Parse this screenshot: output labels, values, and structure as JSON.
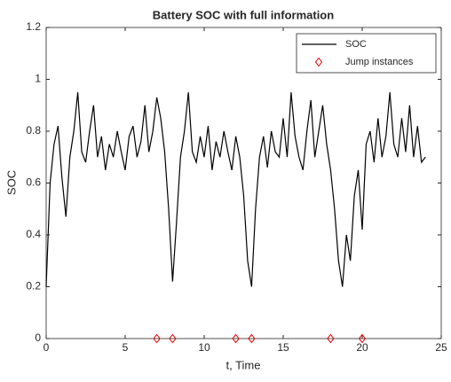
{
  "chart_data": {
    "type": "line",
    "title": "Battery SOC with full information",
    "xlabel": "t, Time",
    "ylabel": "SOC",
    "xlim": [
      0,
      25
    ],
    "xticks": [
      0,
      5,
      10,
      15,
      20,
      25
    ],
    "ylim": [
      0,
      1.2
    ],
    "yticks": [
      0,
      0.2,
      0.4,
      0.6,
      0.8,
      1,
      1.2
    ],
    "grid": false,
    "legend": "top-right",
    "series": [
      {
        "name": "SOC",
        "color": "#000000",
        "marker": "none",
        "x": [
          0,
          0.25,
          0.5,
          0.75,
          1,
          1.25,
          1.5,
          1.75,
          2,
          2.25,
          2.5,
          2.75,
          3,
          3.25,
          3.5,
          3.75,
          4,
          4.25,
          4.5,
          4.75,
          5,
          5.25,
          5.5,
          5.75,
          6,
          6.25,
          6.5,
          6.75,
          7,
          7.25,
          7.5,
          7.75,
          8,
          8.25,
          8.5,
          8.75,
          9,
          9.25,
          9.5,
          9.75,
          10,
          10.25,
          10.5,
          10.75,
          11,
          11.25,
          11.5,
          11.75,
          12,
          12.25,
          12.5,
          12.75,
          13,
          13.25,
          13.5,
          13.75,
          14,
          14.25,
          14.5,
          14.75,
          15,
          15.25,
          15.5,
          15.75,
          16,
          16.25,
          16.5,
          16.75,
          17,
          17.25,
          17.5,
          17.75,
          18,
          18.25,
          18.5,
          18.75,
          19,
          19.25,
          19.5,
          19.75,
          20,
          20.25,
          20.5,
          20.75,
          21,
          21.25,
          21.5,
          21.75,
          22,
          22.25,
          22.5,
          22.75,
          23,
          23.25,
          23.5,
          23.75,
          24
        ],
        "values": [
          0.2,
          0.6,
          0.75,
          0.82,
          0.62,
          0.47,
          0.7,
          0.8,
          0.95,
          0.72,
          0.68,
          0.8,
          0.9,
          0.7,
          0.78,
          0.65,
          0.75,
          0.7,
          0.8,
          0.72,
          0.65,
          0.78,
          0.82,
          0.7,
          0.76,
          0.9,
          0.72,
          0.8,
          0.93,
          0.85,
          0.72,
          0.5,
          0.22,
          0.45,
          0.7,
          0.8,
          0.95,
          0.72,
          0.68,
          0.78,
          0.7,
          0.82,
          0.65,
          0.76,
          0.7,
          0.8,
          0.72,
          0.65,
          0.78,
          0.7,
          0.55,
          0.3,
          0.2,
          0.5,
          0.7,
          0.78,
          0.66,
          0.8,
          0.72,
          0.7,
          0.85,
          0.7,
          0.95,
          0.78,
          0.7,
          0.65,
          0.8,
          0.92,
          0.7,
          0.8,
          0.9,
          0.75,
          0.65,
          0.5,
          0.3,
          0.2,
          0.4,
          0.3,
          0.55,
          0.65,
          0.42,
          0.75,
          0.8,
          0.68,
          0.85,
          0.7,
          0.78,
          0.95,
          0.75,
          0.7,
          0.85,
          0.72,
          0.9,
          0.7,
          0.82,
          0.68,
          0.7
        ]
      },
      {
        "name": "Jump instances",
        "color": "#e00000",
        "marker": "diamond",
        "x": [
          7,
          8,
          12,
          13,
          18,
          20
        ],
        "values": [
          0,
          0,
          0,
          0,
          0,
          0
        ]
      }
    ]
  }
}
